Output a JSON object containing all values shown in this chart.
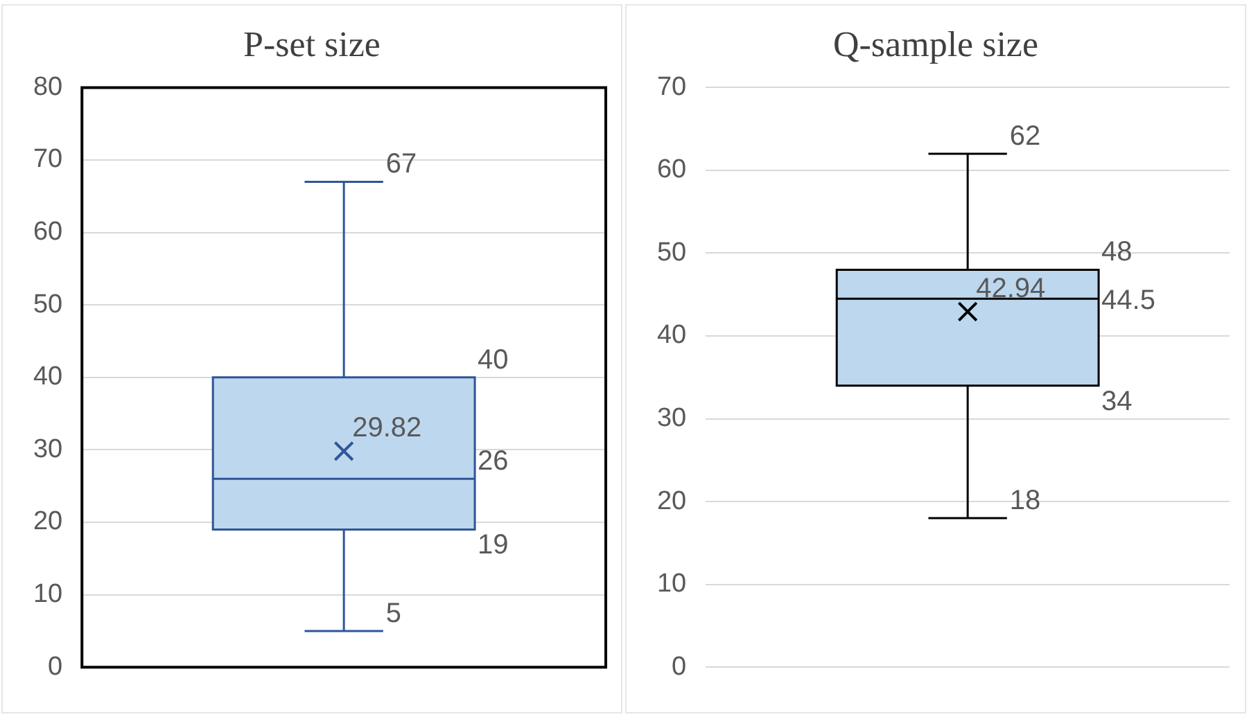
{
  "chart_data": [
    {
      "type": "box",
      "title": "P-set size",
      "categories": [
        null
      ],
      "color": "#bdd7ee",
      "boxes": [
        {
          "low": 5,
          "q1": 19,
          "median": 26,
          "q3": 40,
          "high": 67,
          "mean": 29.82
        }
      ],
      "ylim": [
        0,
        80
      ],
      "yticks": [
        0,
        10,
        20,
        30,
        40,
        50,
        60,
        70,
        80
      ],
      "grid": "y",
      "annotations": [
        "67",
        "40",
        "29.82",
        "26",
        "19",
        "5"
      ]
    },
    {
      "type": "box",
      "title": "Q-sample size",
      "categories": [
        null
      ],
      "color": "#bdd7ee",
      "boxes": [
        {
          "low": 18,
          "q1": 34,
          "median": 44.5,
          "q3": 48,
          "high": 62,
          "mean": 42.94
        }
      ],
      "ylim": [
        0,
        70
      ],
      "yticks": [
        0,
        10,
        20,
        30,
        40,
        50,
        60,
        70
      ],
      "grid": "y",
      "annotations": [
        "62",
        "48",
        "42.94",
        "44.5",
        "34",
        "18"
      ]
    }
  ]
}
